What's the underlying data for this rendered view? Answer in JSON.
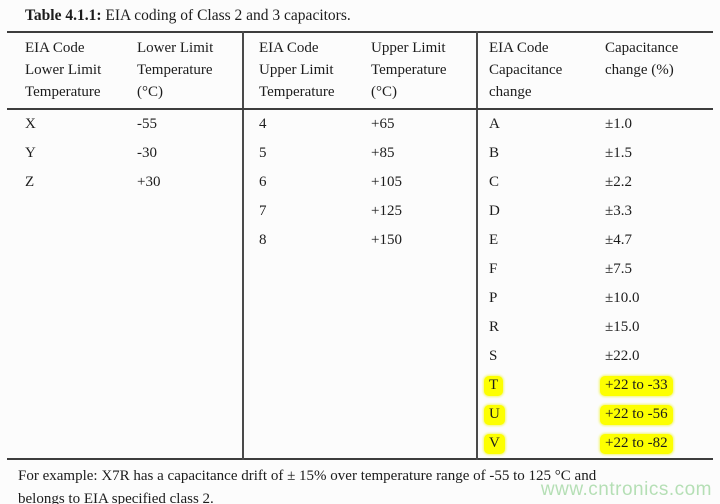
{
  "page": {
    "background_color": "#fcfcfc",
    "text_color": "#1c1c1c",
    "highlight_color": "#fdff00",
    "rule_color": "#3d3d3d",
    "watermark_color": "#b5dfb5"
  },
  "title": {
    "label": "Table 4.1.1:",
    "caption": " EIA coding of Class 2 and 3 capacitors."
  },
  "table": {
    "headers": [
      "EIA Code\nLower Limit\nTemperature",
      "Lower Limit\nTemperature\n(°C)",
      "EIA Code\nUpper Limit\nTemperature",
      "Upper Limit\nTemperature\n(°C)",
      "EIA Code\nCapacitance\nchange",
      "Capacitance\nchange (%)"
    ],
    "rows": [
      [
        "X",
        "-55",
        "4",
        "+65",
        "A",
        "±1.0"
      ],
      [
        "Y",
        "-30",
        "5",
        "+85",
        "B",
        "±1.5"
      ],
      [
        "Z",
        "+30",
        "6",
        "+105",
        "C",
        "±2.2"
      ],
      [
        "",
        "",
        "7",
        "+125",
        "D",
        "±3.3"
      ],
      [
        "",
        "",
        "8",
        "+150",
        "E",
        "±4.7"
      ],
      [
        "",
        "",
        "",
        "",
        "F",
        "±7.5"
      ],
      [
        "",
        "",
        "",
        "",
        "P",
        "±10.0"
      ],
      [
        "",
        "",
        "",
        "",
        "R",
        "±15.0"
      ],
      [
        "",
        "",
        "",
        "",
        "S",
        "±22.0"
      ],
      [
        "",
        "",
        "",
        "",
        "T",
        "+22 to -33"
      ],
      [
        "",
        "",
        "",
        "",
        "U",
        "+22 to -56"
      ],
      [
        "",
        "",
        "",
        "",
        "V",
        "+22 to -82"
      ]
    ],
    "highlighted_codes": [
      "T",
      "U",
      "V"
    ]
  },
  "footer": {
    "note": "For example: X7R has a capacitance drift of ± 15% over temperature range of -55 to 125 °C and\nbelongs to EIA specified class 2."
  },
  "watermark": "www.cntronics.com"
}
